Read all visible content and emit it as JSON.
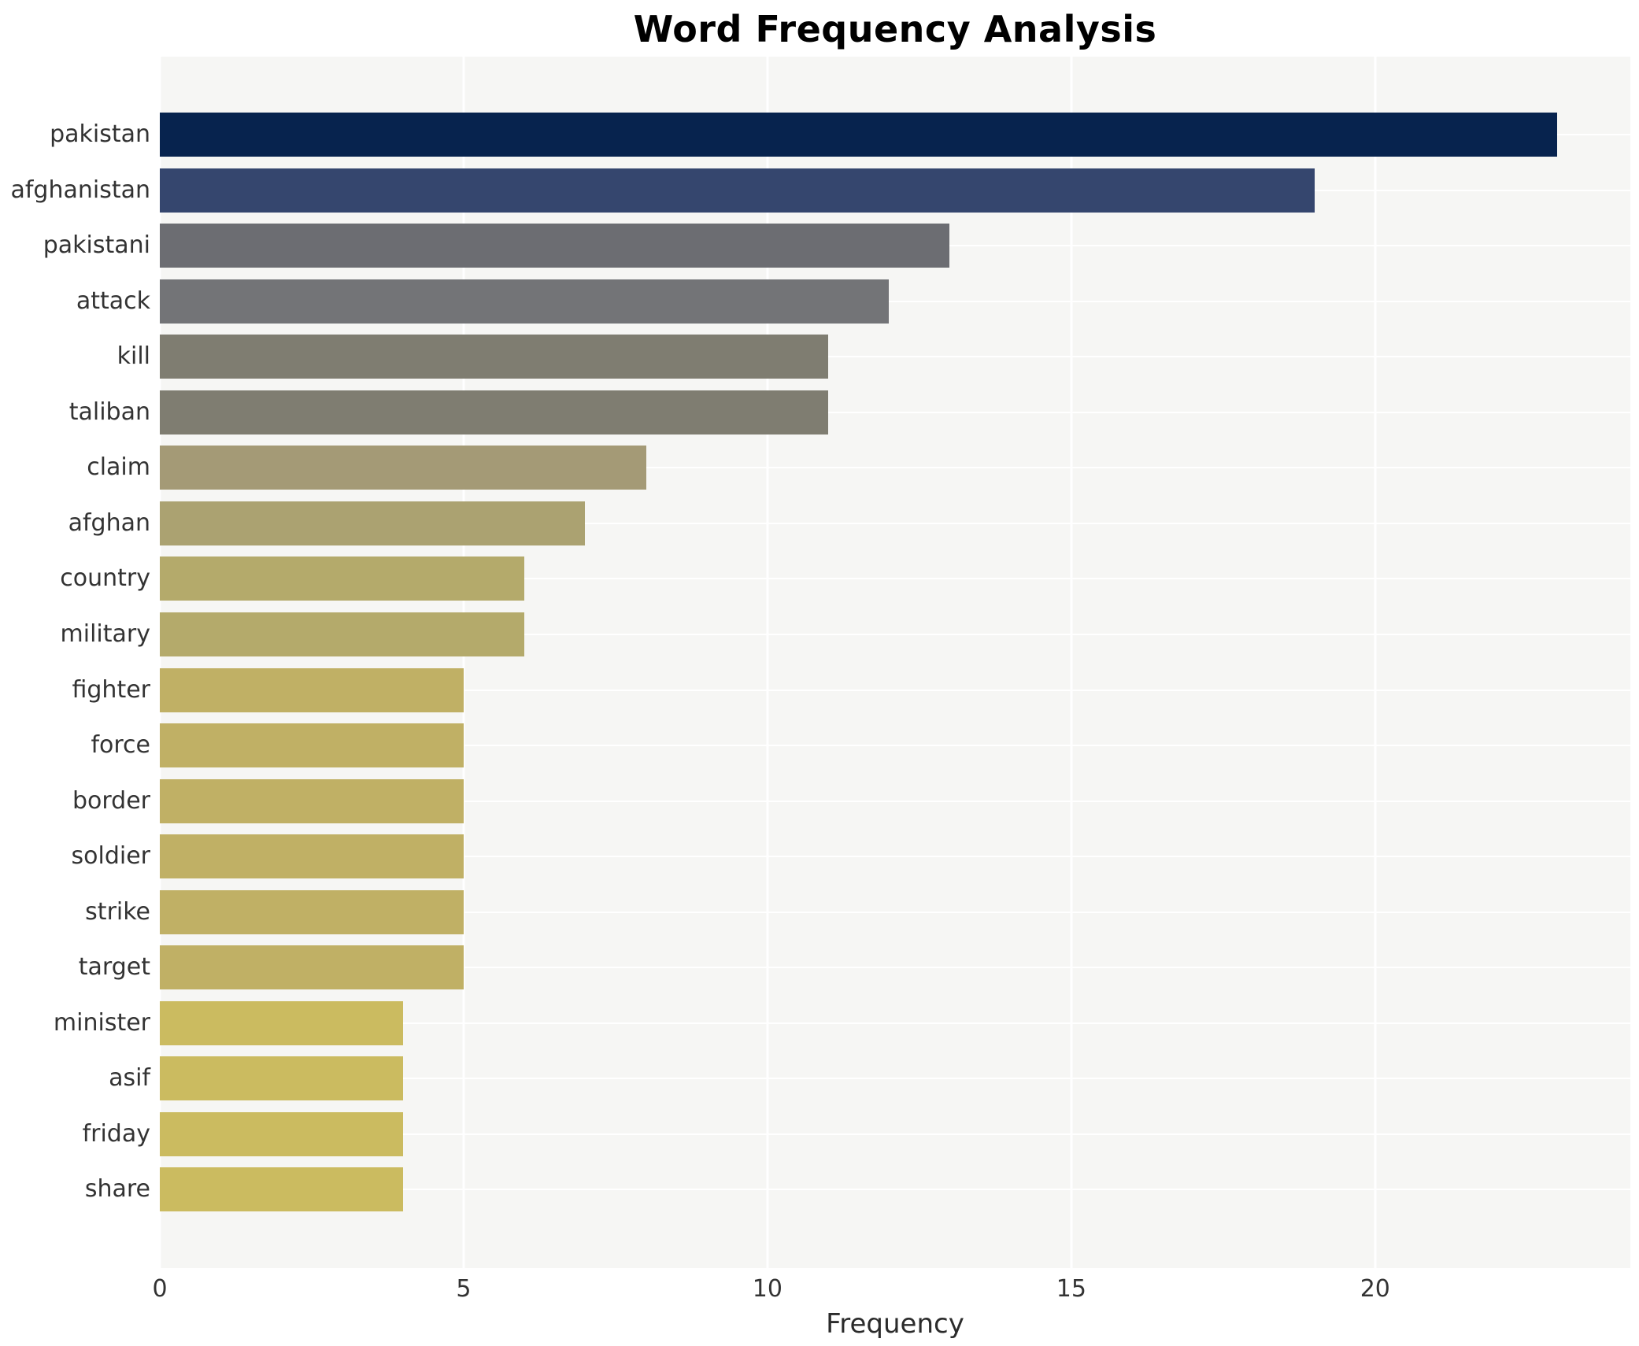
{
  "chart_data": {
    "type": "bar",
    "orientation": "horizontal",
    "title": "Word Frequency Analysis",
    "xlabel": "Frequency",
    "ylabel": "",
    "categories": [
      "pakistan",
      "afghanistan",
      "pakistani",
      "attack",
      "kill",
      "taliban",
      "claim",
      "afghan",
      "country",
      "military",
      "fighter",
      "force",
      "border",
      "soldier",
      "strike",
      "target",
      "minister",
      "asif",
      "friday",
      "share"
    ],
    "values": [
      23,
      19,
      13,
      12,
      11,
      11,
      8,
      7,
      6,
      6,
      5,
      5,
      5,
      5,
      5,
      5,
      4,
      4,
      4,
      4
    ],
    "bar_colors": [
      "#07234e",
      "#35466e",
      "#6c6d72",
      "#737477",
      "#7f7d71",
      "#7f7d71",
      "#a49a76",
      "#aba271",
      "#b4aa6b",
      "#b4aa6b",
      "#c0b065",
      "#c0b065",
      "#c0b065",
      "#c0b065",
      "#c0b065",
      "#c0b065",
      "#cbbb60",
      "#cbbb60",
      "#cbbb60",
      "#cbbb60"
    ],
    "xlim": [
      0,
      24.2
    ],
    "xticks": [
      0,
      5,
      10,
      15,
      20
    ],
    "grid": true,
    "legend": false,
    "gridline_color": "#ffffff",
    "panel_background": "#f6f6f4",
    "title_color": "#000000",
    "tick_label_color": "#333333"
  }
}
